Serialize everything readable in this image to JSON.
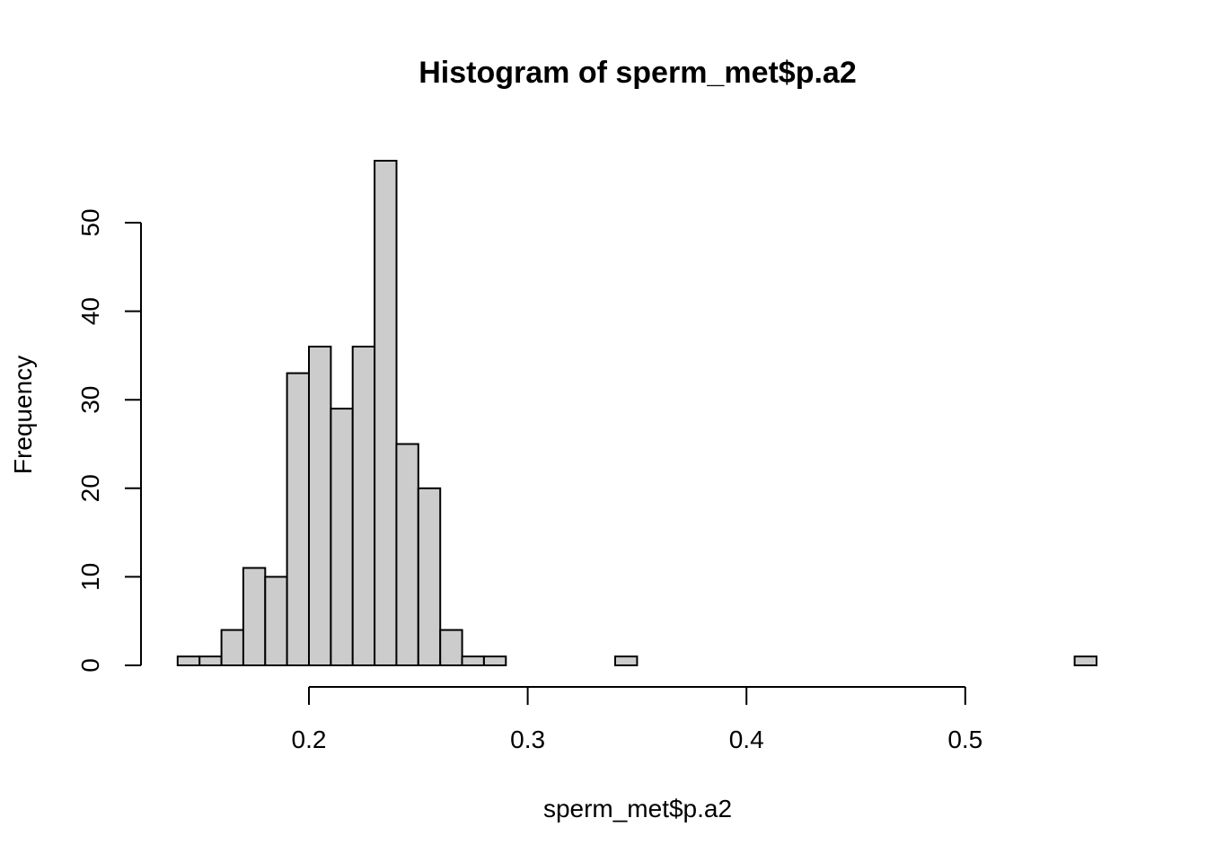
{
  "chart_data": {
    "type": "bar",
    "title": "Histogram of sperm_met$p.a2",
    "xlabel": "sperm_met$p.a2",
    "ylabel": "Frequency",
    "bin_width": 0.01,
    "bin_start": 0.14,
    "counts": [
      1,
      1,
      4,
      11,
      10,
      33,
      36,
      29,
      36,
      57,
      25,
      20,
      4,
      1,
      1,
      0,
      0,
      0,
      0,
      0,
      1,
      0,
      0,
      0,
      0,
      0,
      0,
      0,
      0,
      0,
      0,
      0,
      0,
      0,
      0,
      0,
      0,
      0,
      0,
      0,
      0,
      1
    ],
    "xlim": [
      0.14,
      0.56
    ],
    "ylim": [
      0,
      57
    ],
    "x_ticks": [
      "0.2",
      "0.3",
      "0.4",
      "0.5"
    ],
    "y_ticks": [
      "0",
      "10",
      "20",
      "30",
      "40",
      "50"
    ],
    "bar_fill": "#cccccc",
    "bar_stroke": "#000000",
    "grid": false
  }
}
